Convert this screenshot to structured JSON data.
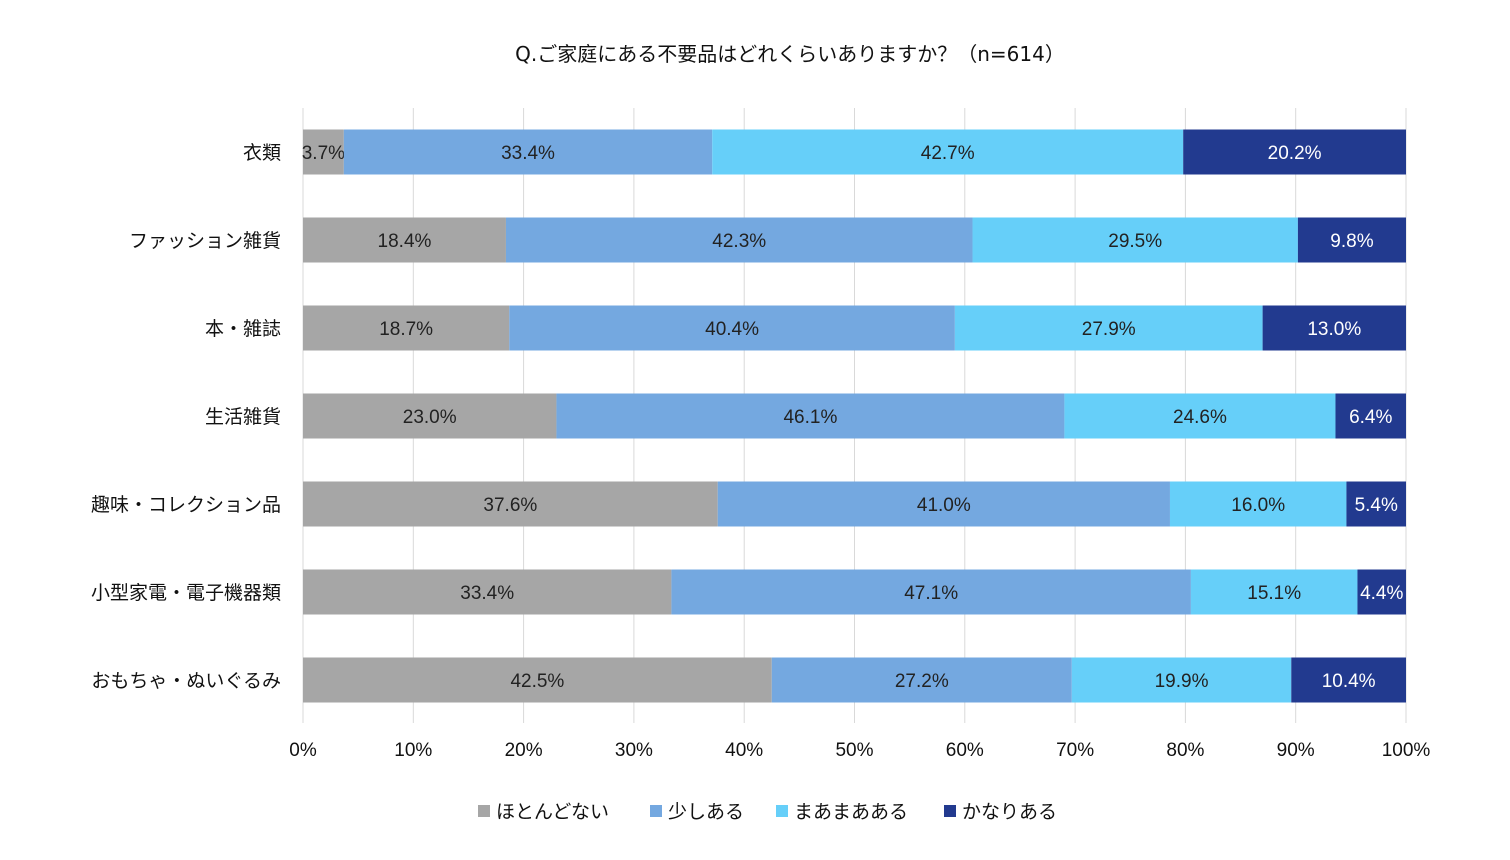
{
  "chart_data": {
    "type": "bar",
    "orientation": "horizontal",
    "stacked": "percent",
    "title": "Q.ご家庭にある不要品はどれくらいありますか？（n=614）",
    "categories": [
      "衣類",
      "ファッション雑貨",
      "本・雑誌",
      "生活雑貨",
      "趣味・コレクション品",
      "小型家電・電子機器類",
      "おもちゃ・ぬいぐるみ"
    ],
    "series": [
      {
        "name": "ほとんどない",
        "color": "#a6a6a6",
        "label_color": "#222222",
        "values": [
          3.7,
          18.4,
          18.7,
          23.0,
          37.6,
          33.4,
          42.5
        ],
        "labels": [
          "3.7%",
          "18.4%",
          "18.7%",
          "23.0%",
          "37.6%",
          "33.4%",
          "42.5%"
        ]
      },
      {
        "name": "少しある",
        "color": "#74a8e0",
        "label_color": "#222222",
        "values": [
          33.4,
          42.3,
          40.4,
          46.1,
          41.0,
          47.1,
          27.2
        ],
        "labels": [
          "33.4%",
          "42.3%",
          "40.4%",
          "46.1%",
          "41.0%",
          "47.1%",
          "27.2%"
        ]
      },
      {
        "name": "まあまあある",
        "color": "#66cff9",
        "label_color": "#222222",
        "values": [
          42.7,
          29.5,
          27.9,
          24.6,
          16.0,
          15.1,
          19.9
        ],
        "labels": [
          "42.7%",
          "29.5%",
          "27.9%",
          "24.6%",
          "16.0%",
          "15.1%",
          "19.9%"
        ]
      },
      {
        "name": "かなりある",
        "color": "#223a8f",
        "label_color": "#ffffff",
        "values": [
          20.2,
          9.8,
          13.0,
          6.4,
          5.4,
          4.4,
          10.4
        ],
        "labels": [
          "20.2%",
          "9.8%",
          "13.0%",
          "6.4%",
          "5.4%",
          "4.4%",
          "10.4%"
        ]
      }
    ],
    "xlim": [
      0,
      100
    ],
    "xticks": [
      "0%",
      "10%",
      "20%",
      "30%",
      "40%",
      "50%",
      "60%",
      "70%",
      "80%",
      "90%",
      "100%"
    ],
    "grid": "vertical",
    "legend": "bottom-center"
  }
}
